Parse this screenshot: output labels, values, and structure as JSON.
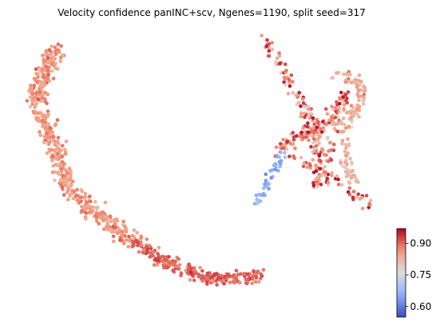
{
  "chart_data": {
    "type": "scatter",
    "title": "Velocity confidence panINC+scv, Ngenes=1190, split seed=317",
    "xlabel": "",
    "ylabel": "",
    "axes_visible": false,
    "colormap": "coolwarm",
    "colorbar": {
      "range": [
        0.55,
        0.97
      ],
      "ticks": [
        0.6,
        0.75,
        0.9
      ],
      "tick_labels": [
        "0.60",
        "0.75",
        "0.90"
      ],
      "placement": "bottom-right"
    },
    "clusters": [
      {
        "region": "left-arc",
        "approx_confidence_range": [
          0.8,
          0.95
        ],
        "typical": 0.86
      },
      {
        "region": "bottom-tail",
        "approx_confidence_range": [
          0.85,
          0.97
        ],
        "typical": 0.9
      },
      {
        "region": "right-x-shape",
        "approx_confidence_range": [
          0.6,
          0.96
        ],
        "typical": 0.88
      },
      {
        "region": "right-lobe",
        "approx_confidence_range": [
          0.72,
          0.9
        ],
        "typical": 0.83
      },
      {
        "region": "low-confidence-spur",
        "approx_confidence_range": [
          0.58,
          0.75
        ],
        "typical": 0.66
      }
    ]
  }
}
